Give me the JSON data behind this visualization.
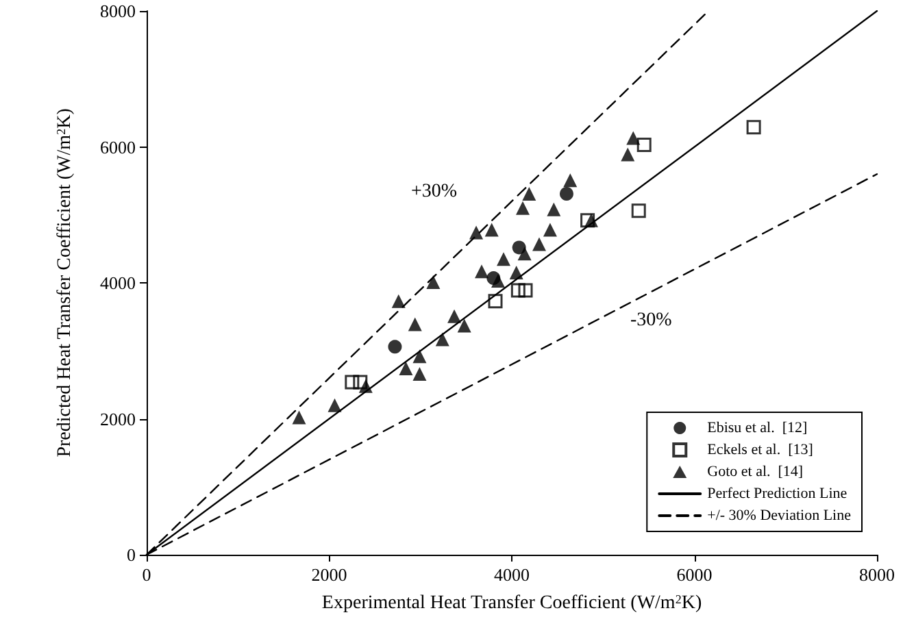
{
  "chart_data": {
    "type": "scatter",
    "xlabel": "Experimental Heat Transfer Coefficient (W/m$^{2}$K)",
    "ylabel": "Predicted Heat Transfer Coefficient (W/m$^{2}$K)",
    "xlim": [
      0,
      8000
    ],
    "ylim": [
      0,
      8000
    ],
    "xticks": [
      0,
      2000,
      4000,
      6000,
      8000
    ],
    "yticks": [
      0,
      2000,
      4000,
      6000,
      8000
    ],
    "grid": false,
    "legend": "bottom right",
    "annotations": [
      "+30%",
      "-30%"
    ],
    "series": [
      {
        "name": "Ebisu et al.  [12]",
        "color": "#000000",
        "marker": "circle",
        "x": [
          2720,
          3800,
          4080,
          4600
        ],
        "values": [
          3060,
          4070,
          4520,
          5310
        ]
      },
      {
        "name": "Eckels et al.  [13]",
        "color": "#000000",
        "marker": "square",
        "x": [
          2250,
          2340,
          3820,
          4070,
          4150,
          4830,
          5390,
          5450,
          6650
        ],
        "values": [
          2540,
          2540,
          3730,
          3890,
          3890,
          4920,
          5060,
          6030,
          6290
        ]
      },
      {
        "name": "Goto et al.  [14]",
        "color": "#000000",
        "marker": "triangle",
        "x": [
          1670,
          2060,
          2400,
          2760,
          3140,
          2940,
          2990,
          2840,
          2990,
          3240,
          3370,
          3480,
          3670,
          3850,
          4050,
          3910,
          4140,
          4300,
          4420,
          3610,
          3780,
          4120,
          4190,
          4460,
          4640,
          4870,
          5330,
          5270
        ],
        "values": [
          2020,
          2200,
          2480,
          3730,
          4010,
          3390,
          2920,
          2740,
          2660,
          3170,
          3510,
          3370,
          4170,
          4030,
          4150,
          4350,
          4430,
          4570,
          4780,
          4740,
          4780,
          5100,
          5310,
          5080,
          5510,
          4920,
          6130,
          5890
        ]
      },
      {
        "name": "Perfect Prediction Line",
        "type": "line",
        "color": "#000000",
        "marker": "none",
        "line_style": "solid",
        "x": [
          0,
          8000
        ],
        "values": [
          0,
          8000
        ]
      },
      {
        "name": "+/- 30% Deviation Line",
        "type": "line",
        "color": "#000000",
        "marker": "none",
        "line_style": "dashed",
        "x": [
          0,
          6154
        ],
        "values": [
          0,
          8000
        ]
      },
      {
        "type": "line",
        "color": "#000000",
        "marker": "none",
        "line_style": "dashed",
        "x": [
          0,
          8000
        ],
        "values": [
          0,
          5600
        ]
      }
    ]
  }
}
